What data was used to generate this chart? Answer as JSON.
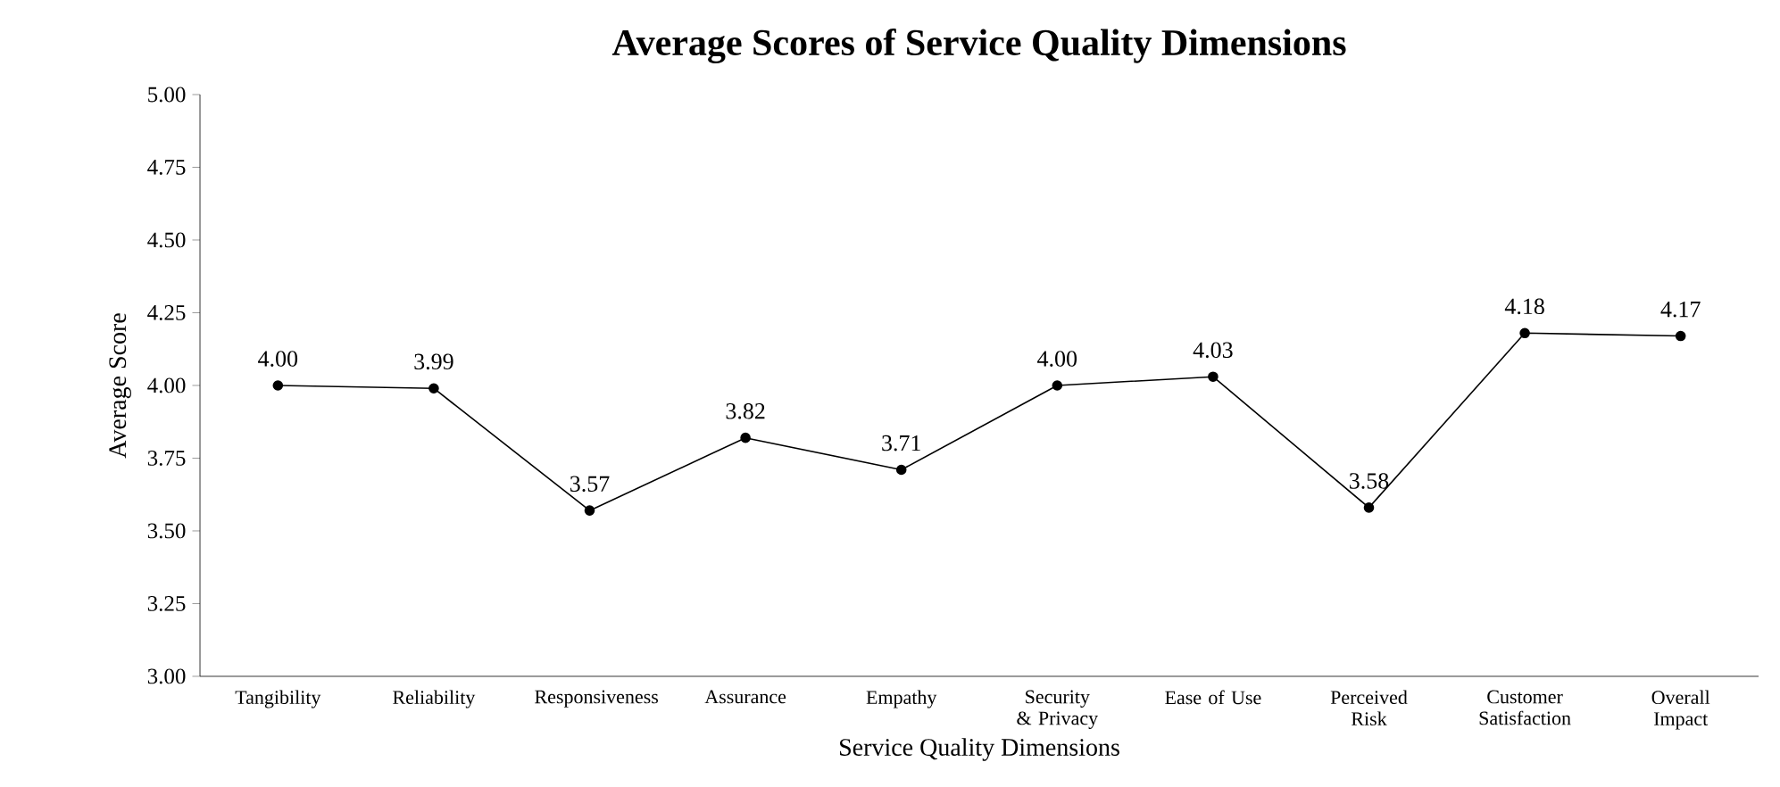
{
  "chart_data": {
    "type": "line",
    "title": "Average Scores of Service Quality Dimensions",
    "xlabel": "Service Quality Dimensions",
    "ylabel": "Average Score",
    "categories": [
      "Tangibility",
      "Reliability",
      "Responsiveness",
      "Assurance",
      "Empathy",
      "Security & Privacy",
      "Ease of Use",
      "Perceived Risk",
      "Customer Satisfaction",
      "Overall Impact"
    ],
    "values": [
      4.0,
      3.99,
      3.57,
      3.82,
      3.71,
      4.0,
      4.03,
      3.58,
      4.18,
      4.17
    ],
    "value_labels": [
      "4.00",
      "3.99",
      "3.57",
      "3.82",
      "3.71",
      "4.00",
      "4.03",
      "3.58",
      "4.18",
      "4.17"
    ],
    "color": "#000000",
    "ylim": [
      3.0,
      5.0
    ],
    "yticks": [
      {
        "value": 3.0,
        "label": "3.00"
      },
      {
        "value": 3.25,
        "label": "3.25"
      },
      {
        "value": 3.5,
        "label": "3.50"
      },
      {
        "value": 3.75,
        "label": "3.75"
      },
      {
        "value": 4.0,
        "label": "4.00"
      },
      {
        "value": 4.25,
        "label": "4.25"
      },
      {
        "value": 4.5,
        "label": "4.50"
      },
      {
        "value": 4.75,
        "label": "4.75"
      },
      {
        "value": 5.0,
        "label": "5.00"
      }
    ],
    "grid": false,
    "marker": "circle",
    "line_style": "solid"
  }
}
